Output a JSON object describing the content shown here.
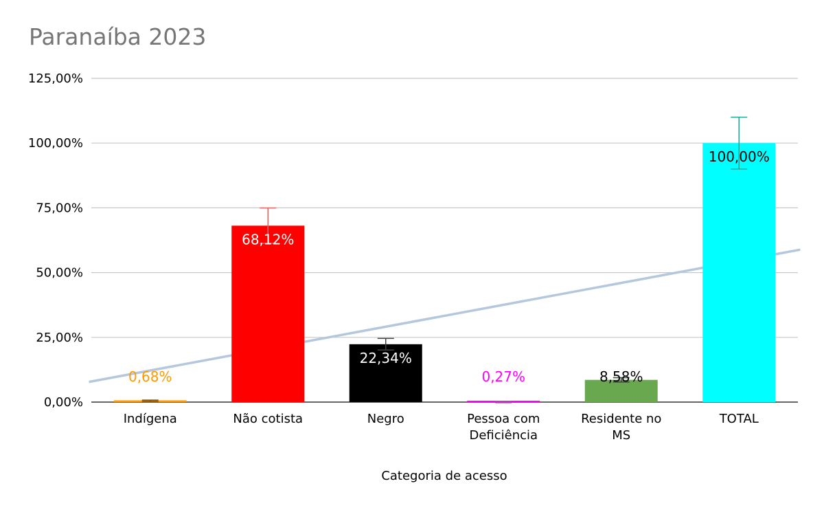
{
  "chart_data": {
    "type": "bar",
    "title": "Paranaíba 2023",
    "xlabel": "Categoria de acesso",
    "ylabel": "",
    "ylim": [
      0,
      125
    ],
    "yticks": [
      "0,00%",
      "25,00%",
      "50,00%",
      "75,00%",
      "100,00%",
      "125,00%"
    ],
    "ytick_values": [
      0,
      25,
      50,
      75,
      100,
      125
    ],
    "grid": true,
    "categories": [
      [
        "Indígena"
      ],
      [
        "Não cotista"
      ],
      [
        "Negro"
      ],
      [
        "Pessoa com",
        "Deficiência"
      ],
      [
        "Residente no",
        "MS"
      ],
      [
        "TOTAL"
      ]
    ],
    "values": [
      0.68,
      68.12,
      22.34,
      0.27,
      8.58,
      100.0
    ],
    "data_labels": [
      "0,68%",
      "68,12%",
      "22,34%",
      "0,27%",
      "8,58%",
      "100,00%"
    ],
    "colors": [
      "#ff9900",
      "#ff0000",
      "#000000",
      "#ff00ff",
      "#6aa84f",
      "#00ffff"
    ],
    "label_colors": [
      "#ff9900",
      "#ffffff",
      "#ffffff",
      "#ff00ff",
      "#000000",
      "#000000"
    ],
    "error_bar_colors": [
      "#7f4c00",
      "#e06666",
      "#444444",
      "#a64ca6",
      "#444444",
      "#26a69a"
    ],
    "error_percent": 10,
    "trendline": {
      "type": "linear",
      "color": "#b4c7dc"
    }
  }
}
